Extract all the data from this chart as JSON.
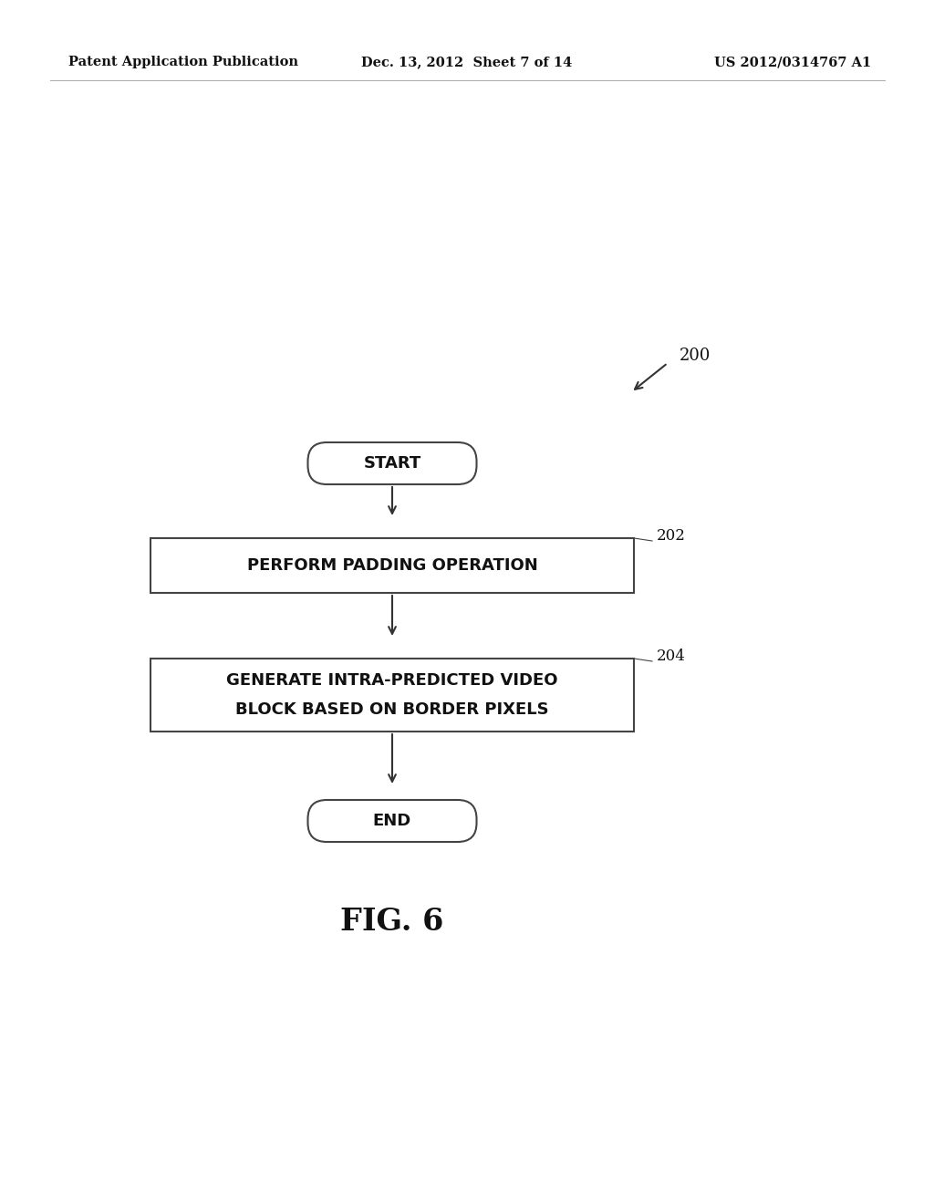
{
  "background_color": "#ffffff",
  "header_left": "Patent Application Publication",
  "header_mid": "Dec. 13, 2012  Sheet 7 of 14",
  "header_right": "US 2012/0314767 A1",
  "fig_label": "FIG. 6",
  "start_text": "START",
  "box1_text": "PERFORM PADDING OPERATION",
  "box2_text_line1": "GENERATE INTRA-PREDICTED VIDEO",
  "box2_text_line2": "BLOCK BASED ON BORDER PIXELS",
  "end_text": "END",
  "label_200": "200",
  "label_202": "202",
  "label_204": "204",
  "box_edge_color": "#444444",
  "box_face_color": "#ffffff",
  "text_color": "#111111",
  "arrow_color": "#333333"
}
